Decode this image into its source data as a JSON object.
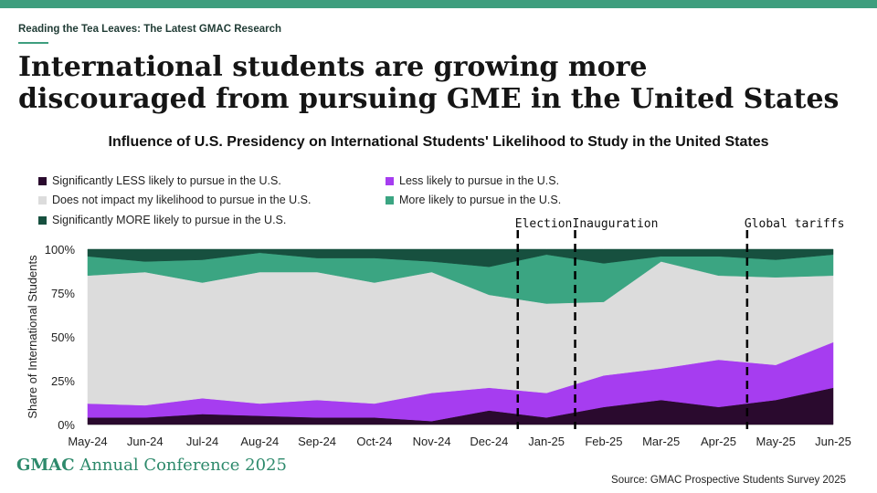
{
  "header": {
    "eyebrow": "Reading the Tea Leaves: The Latest GMAC Research",
    "headline": "International students are growing more discouraged from pursuing GME in the United States"
  },
  "footer": {
    "brand_bold": "GMAC",
    "brand_rest": "Annual Conference 2025",
    "source": "Source: GMAC Prospective Students Survey 2025"
  },
  "chart_data": {
    "type": "area",
    "stacked": true,
    "title": "Influence of U.S. Presidency on International Students' Likelihood to Study in the United States",
    "ylabel": "Share of International Students",
    "xlabel": "",
    "ylim": [
      0,
      100
    ],
    "yticks": [
      "0%",
      "25%",
      "50%",
      "75%",
      "100%"
    ],
    "grid": false,
    "legend_position": "top",
    "categories": [
      "May-24",
      "Jun-24",
      "Jul-24",
      "Aug-24",
      "Sep-24",
      "Oct-24",
      "Nov-24",
      "Dec-24",
      "Jan-25",
      "Feb-25",
      "Mar-25",
      "Apr-25",
      "May-25",
      "Jun-25"
    ],
    "series": [
      {
        "name": "Significantly LESS likely to pursue in the U.S.",
        "color": "#2a0a2e",
        "values": [
          4,
          4,
          6,
          5,
          4,
          4,
          2,
          8,
          4,
          10,
          14,
          10,
          14,
          21
        ]
      },
      {
        "name": "Less likely to pursue in the U.S.",
        "color": "#a63df0",
        "values": [
          8,
          7,
          9,
          7,
          10,
          8,
          16,
          13,
          14,
          18,
          18,
          27,
          20,
          26
        ]
      },
      {
        "name": "Does not impact my likelihood to pursue in the U.S.",
        "color": "#dcdcdc",
        "values": [
          73,
          76,
          66,
          75,
          73,
          69,
          69,
          53,
          51,
          42,
          61,
          48,
          50,
          38
        ]
      },
      {
        "name": "More likely to pursue in the U.S.",
        "color": "#3ba582",
        "values": [
          11,
          6,
          13,
          11,
          8,
          14,
          6,
          16,
          28,
          22,
          3,
          11,
          10,
          12
        ]
      },
      {
        "name": "Significantly MORE likely to pursue in the U.S.",
        "color": "#17503f",
        "values": [
          4,
          7,
          6,
          2,
          5,
          5,
          7,
          10,
          3,
          8,
          4,
          4,
          6,
          3
        ]
      }
    ],
    "annotations": [
      {
        "label": "Election",
        "x": 7.5
      },
      {
        "label": "Inauguration",
        "x": 8.5
      },
      {
        "label": "Global tariffs",
        "x": 11.5
      }
    ]
  }
}
